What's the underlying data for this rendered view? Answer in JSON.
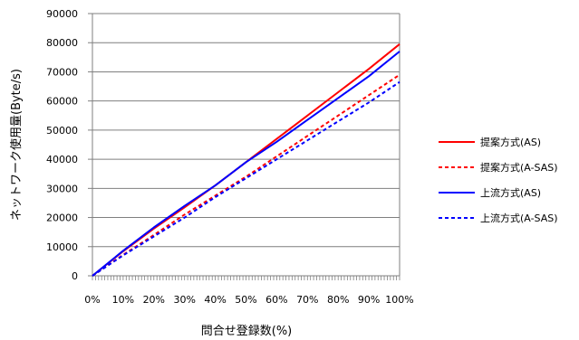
{
  "chart_data": {
    "type": "line",
    "xlabel": "問合せ登録数(%)",
    "ylabel": "ネットワーク使用量(Byte/s)",
    "ylim": [
      0,
      90000
    ],
    "xlim": [
      0,
      100
    ],
    "y_ticks": [
      0,
      10000,
      20000,
      30000,
      40000,
      50000,
      60000,
      70000,
      80000,
      90000
    ],
    "y_tick_labels": [
      "0",
      "10000",
      "20000",
      "30000",
      "40000",
      "50000",
      "60000",
      "70000",
      "80000",
      "90000"
    ],
    "x_ticks": [
      0,
      10,
      20,
      30,
      40,
      50,
      60,
      70,
      80,
      90,
      100
    ],
    "x_tick_labels": [
      "0%",
      "10%",
      "20%",
      "30%",
      "40%",
      "50%",
      "60%",
      "70%",
      "80%",
      "90%",
      "100%"
    ],
    "grid": "horizontal",
    "legend_position": "right",
    "series": [
      {
        "name": "提案方式(AS)",
        "color": "#ff0000",
        "style": "solid",
        "x": [
          0,
          10,
          20,
          30,
          40,
          50,
          60,
          70,
          80,
          90,
          100
        ],
        "y": [
          0,
          8400,
          16200,
          23500,
          31000,
          39000,
          47000,
          55000,
          63000,
          71000,
          79500
        ]
      },
      {
        "name": "提案方式(A-SAS)",
        "color": "#ff0000",
        "style": "dashed",
        "x": [
          0,
          10,
          20,
          30,
          40,
          50,
          60,
          70,
          80,
          90,
          100
        ],
        "y": [
          0,
          7200,
          14000,
          21000,
          27500,
          34000,
          41000,
          48000,
          55000,
          62000,
          69000
        ]
      },
      {
        "name": "上流方式(AS)",
        "color": "#0000ff",
        "style": "solid",
        "x": [
          0,
          10,
          20,
          30,
          40,
          50,
          60,
          70,
          80,
          90,
          100
        ],
        "y": [
          0,
          8600,
          16600,
          24000,
          31000,
          39000,
          46000,
          53500,
          61000,
          68500,
          77000
        ]
      },
      {
        "name": "上流方式(A-SAS)",
        "color": "#0000ff",
        "style": "dashed",
        "x": [
          0,
          10,
          20,
          30,
          40,
          50,
          60,
          70,
          80,
          90,
          100
        ],
        "y": [
          0,
          7000,
          13500,
          20000,
          27000,
          33500,
          40000,
          46500,
          53000,
          59500,
          66500
        ]
      }
    ]
  }
}
